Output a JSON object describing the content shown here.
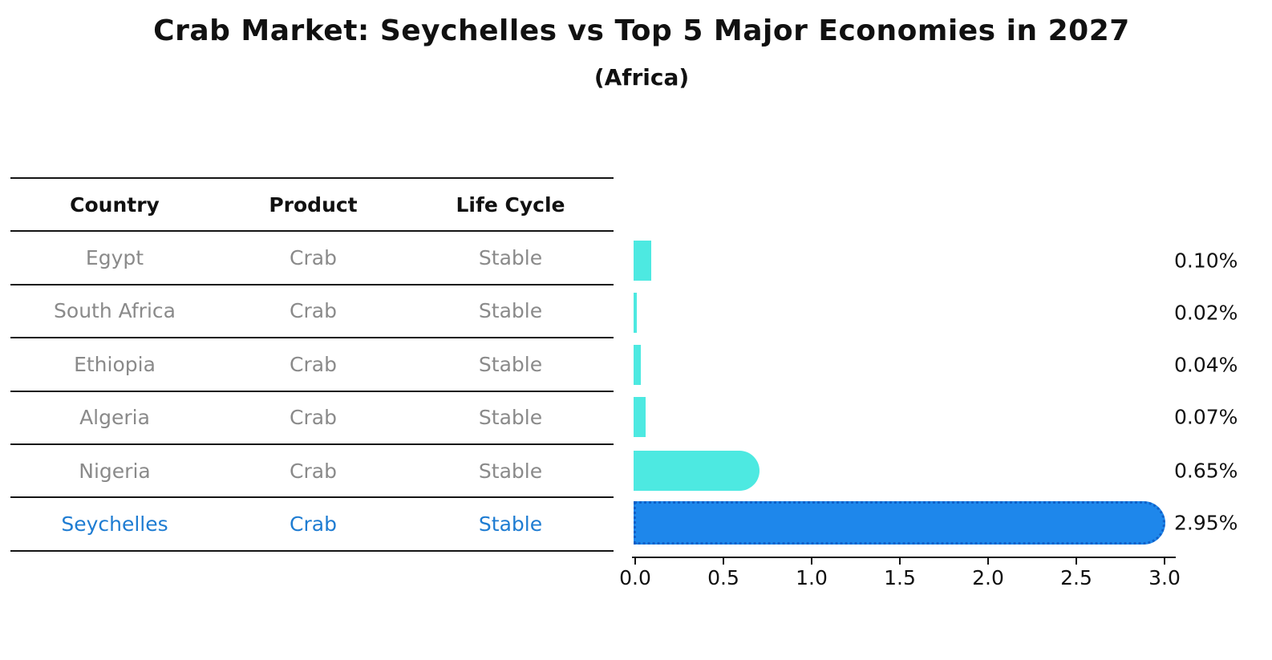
{
  "chart_data": {
    "type": "bar",
    "orientation": "horizontal",
    "title": "Crab Market: Seychelles vs Top 5 Major Economies in 2027",
    "subtitle": "(Africa)",
    "categories": [
      "Egypt",
      "South Africa",
      "Ethiopia",
      "Algeria",
      "Nigeria",
      "Seychelles"
    ],
    "values": [
      0.1,
      0.02,
      0.04,
      0.07,
      0.65,
      2.95
    ],
    "value_labels": [
      "0.10%",
      "0.02%",
      "0.04%",
      "0.07%",
      "0.65%",
      "2.95%"
    ],
    "xlim": [
      0.0,
      3.0
    ],
    "x_ticks": [
      "0.0",
      "0.5",
      "1.0",
      "1.5",
      "2.0",
      "2.5",
      "3.0"
    ],
    "grid": false,
    "legend": "none",
    "highlight_index": 5,
    "bar_color": "#4DE9E1",
    "highlight_color": "#1E87EB",
    "highlight_edge_color": "#1060C8"
  },
  "table": {
    "headers": {
      "country": "Country",
      "product": "Product",
      "life_cycle": "Life Cycle"
    },
    "rows": [
      {
        "country": "Egypt",
        "product": "Crab",
        "life_cycle": "Stable",
        "highlight": false
      },
      {
        "country": "South Africa",
        "product": "Crab",
        "life_cycle": "Stable",
        "highlight": false
      },
      {
        "country": "Ethiopia",
        "product": "Crab",
        "life_cycle": "Stable",
        "highlight": false
      },
      {
        "country": "Algeria",
        "product": "Crab",
        "life_cycle": "Stable",
        "highlight": false
      },
      {
        "country": "Nigeria",
        "product": "Crab",
        "life_cycle": "Stable",
        "highlight": false
      },
      {
        "country": "Seychelles",
        "product": "Crab",
        "life_cycle": "Stable",
        "highlight": true
      }
    ]
  },
  "colors": {
    "accent_blue_text": "#1E7CD2",
    "table_text_gray": "#8a8a8a",
    "text_black": "#111111",
    "background": "#ffffff"
  }
}
